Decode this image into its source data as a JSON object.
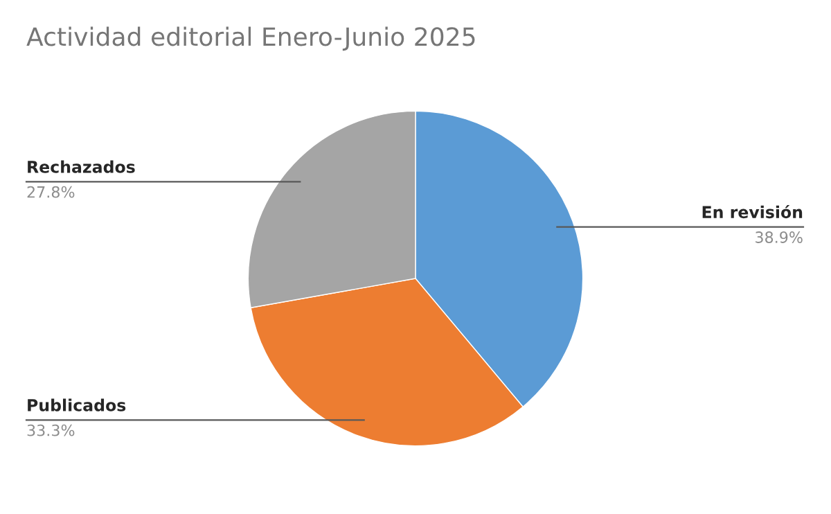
{
  "chart_data": {
    "type": "pie",
    "title": "Actividad editorial Enero-Junio 2025",
    "categories": [
      "En revisión",
      "Publicados",
      "Rechazados"
    ],
    "values": [
      38.9,
      33.3,
      27.8
    ],
    "value_labels": [
      "38.9%",
      "33.3%",
      "27.8%"
    ],
    "colors": [
      "#5b9bd5",
      "#ed7d31",
      "#a5a5a5"
    ],
    "legend": false
  }
}
